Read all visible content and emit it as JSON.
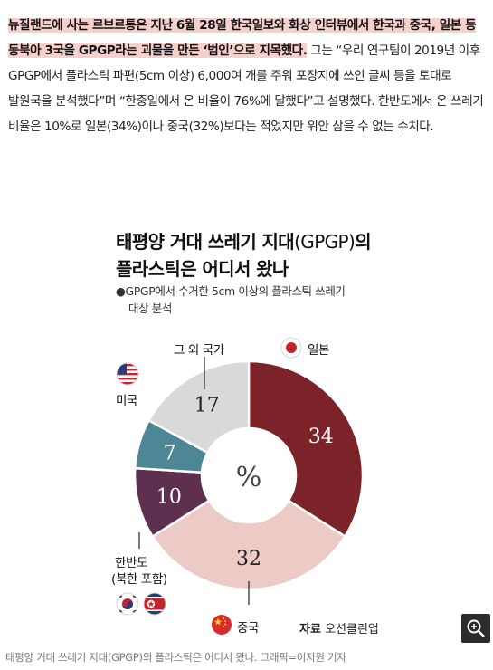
{
  "article": {
    "highlight": "뉴질랜드에 사는 르브르통은 지난 6월 28일 한국일보와 화상 인터뷰에서 한국과 중국, 일본 등 동북아 3국을 GPGP라는 괴물을 만든 ‘범인’으로 지목했다.",
    "body": " 그는 “우리 연구팀이 2019년 이후 GPGP에서 플라스틱 파편(5cm 이상) 6,000여 개를 주워 포장지에 쓰인 글씨 등을 토대로 발원국을 분석했다”며 “한중일에서 온 비율이 76%에 달했다”고 설명했다. 한반도에서 온 쓰레기 비율은 10%로 일본(34%)이나 중국(32%)보다는 적었지만 위안 삼을 수 없는 수치다."
  },
  "figure": {
    "title_bold_1": "태평양 거대 쓰레기 지대",
    "title_light": "(GPGP)",
    "title_bold_1b": "의",
    "title_bold_2": "플라스틱은 어디서 왔나",
    "subtitle_1": "●GPGP에서 수거한 5cm 이상의 플라스틱 쓰레기",
    "subtitle_2": "대상 분석",
    "center_symbol": "%",
    "labels": {
      "japan": "일본",
      "china": "중국",
      "korea_1": "한반도",
      "korea_2": "(북한 포함)",
      "usa": "미국",
      "others": "그 외 국가"
    },
    "source_label": "자료",
    "source_value": "오션클린업",
    "caption": "태평양 거대 쓰레기 지대(GPGP)의 플라스틱은 어디서 왔나. 그래픽=이지원 기자"
  },
  "chart_data": {
    "type": "pie",
    "title": "태평양 거대 쓰레기 지대(GPGP)의 플라스틱은 어디서 왔나",
    "categories": [
      "일본",
      "중국",
      "한반도(북한 포함)",
      "미국",
      "그 외 국가"
    ],
    "values": [
      34,
      32,
      10,
      7,
      17
    ],
    "colors": [
      "#7b2328",
      "#eccac5",
      "#5e2f4f",
      "#4d8795",
      "#d9d9d9"
    ],
    "label_colors": [
      "#ffffff",
      "#222222",
      "#ffffff",
      "#ffffff",
      "#222222"
    ],
    "donut": true,
    "source": "오션클린업"
  }
}
